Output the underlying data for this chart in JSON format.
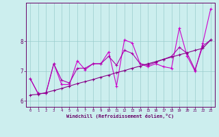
{
  "title": "",
  "xlabel": "Windchill (Refroidissement éolien,°C)",
  "ylabel": "",
  "background_color": "#cceeee",
  "grid_color": "#99cccc",
  "line_zigzag_color": "#cc00cc",
  "line_trend_color": "#880088",
  "line_smooth_color": "#aa00aa",
  "ylim": [
    5.8,
    9.3
  ],
  "xlim": [
    -0.5,
    23.5
  ],
  "xticks": [
    0,
    1,
    2,
    3,
    4,
    5,
    6,
    7,
    8,
    9,
    10,
    11,
    12,
    13,
    14,
    15,
    16,
    17,
    18,
    19,
    20,
    21,
    22,
    23
  ],
  "yticks": [
    6,
    7,
    8
  ],
  "x": [
    0,
    1,
    2,
    3,
    4,
    5,
    6,
    7,
    8,
    9,
    10,
    11,
    12,
    13,
    14,
    15,
    16,
    17,
    18,
    19,
    20,
    21,
    22,
    23
  ],
  "y_zigzag": [
    6.75,
    6.25,
    6.25,
    7.25,
    6.55,
    6.55,
    7.35,
    7.05,
    7.25,
    7.25,
    7.65,
    6.5,
    8.05,
    7.95,
    7.25,
    7.15,
    7.25,
    7.15,
    7.1,
    8.45,
    7.5,
    7.0,
    7.95,
    9.1
  ],
  "y_smooth": [
    6.75,
    6.25,
    6.25,
    7.25,
    6.7,
    6.6,
    7.1,
    7.1,
    7.25,
    7.25,
    7.5,
    7.2,
    7.7,
    7.6,
    7.25,
    7.2,
    7.3,
    7.4,
    7.5,
    7.8,
    7.6,
    7.05,
    7.85,
    8.05
  ],
  "y_trend": [
    6.2,
    6.22,
    6.28,
    6.35,
    6.42,
    6.5,
    6.58,
    6.65,
    6.72,
    6.8,
    6.87,
    6.95,
    7.02,
    7.1,
    7.17,
    7.25,
    7.32,
    7.4,
    7.47,
    7.55,
    7.62,
    7.7,
    7.77,
    8.05
  ]
}
